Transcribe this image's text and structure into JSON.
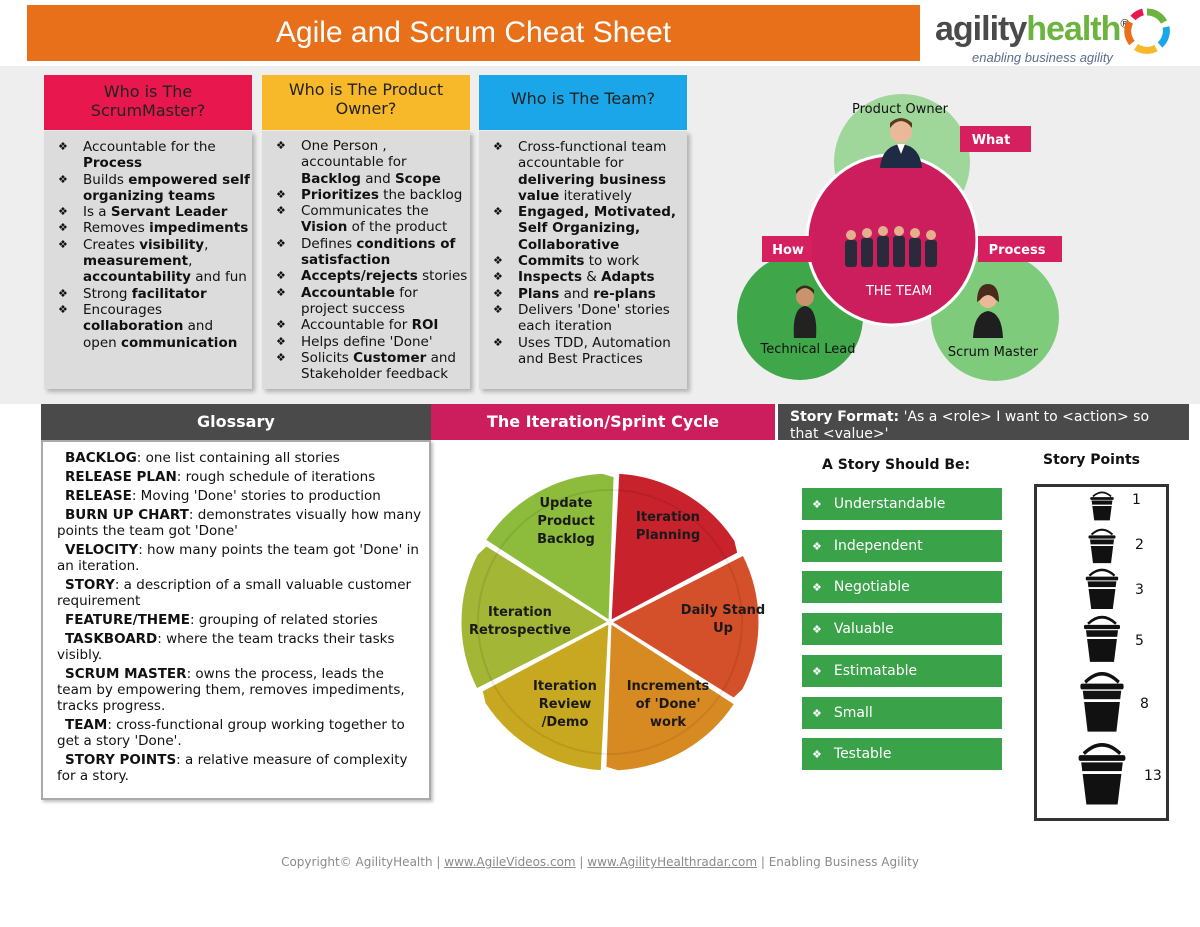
{
  "header": {
    "title": "Agile and Scrum Cheat Sheet"
  },
  "logo": {
    "name_part1": "agility",
    "name_part2": "health",
    "registered": "®",
    "tagline": "enabling business agility"
  },
  "roles": [
    {
      "title": "Who is The ScrumMaster?",
      "color": "#e8184f",
      "items": [
        [
          {
            "t": "Accountable for the "
          },
          {
            "t": "Process",
            "b": true
          }
        ],
        [
          {
            "t": "Builds "
          },
          {
            "t": "empowered self organizing teams",
            "b": true
          }
        ],
        [
          {
            "t": "Is a "
          },
          {
            "t": "Servant Leader",
            "b": true
          }
        ],
        [
          {
            "t": "Removes "
          },
          {
            "t": "impediments",
            "b": true
          }
        ],
        [
          {
            "t": "Creates "
          },
          {
            "t": "visibility",
            "b": true
          },
          {
            "t": ", "
          },
          {
            "t": "measurement",
            "b": true
          },
          {
            "t": ", "
          },
          {
            "t": "accountability",
            "b": true
          },
          {
            "t": " and fun"
          }
        ],
        [
          {
            "t": "Strong "
          },
          {
            "t": "facilitator",
            "b": true
          }
        ],
        [
          {
            "t": "Encourages "
          },
          {
            "t": "collaboration",
            "b": true
          },
          {
            "t": " and open "
          },
          {
            "t": "communication",
            "b": true
          }
        ]
      ]
    },
    {
      "title": "Who is The Product Owner?",
      "color": "#f7b82a",
      "items": [
        [
          {
            "t": "One Person , accountable for "
          },
          {
            "t": "Backlog",
            "b": true
          },
          {
            "t": " and "
          },
          {
            "t": "Scope",
            "b": true
          }
        ],
        [
          {
            "t": "Prioritizes",
            "b": true
          },
          {
            "t": " the backlog"
          }
        ],
        [
          {
            "t": "Communicates the "
          },
          {
            "t": "Vision",
            "b": true
          },
          {
            "t": " of the product"
          }
        ],
        [
          {
            "t": "Defines "
          },
          {
            "t": "conditions of satisfaction",
            "b": true
          }
        ],
        [
          {
            "t": "Accepts/rejects",
            "b": true
          },
          {
            "t": " stories"
          }
        ],
        [
          {
            "t": "Accountable",
            "b": true
          },
          {
            "t": " for project success"
          }
        ],
        [
          {
            "t": "Accountable for "
          },
          {
            "t": "ROI",
            "b": true
          }
        ],
        [
          {
            "t": "Helps define 'Done'"
          }
        ],
        [
          {
            "t": "Solicits "
          },
          {
            "t": "Customer",
            "b": true
          },
          {
            "t": " and Stakeholder feedback"
          }
        ]
      ]
    },
    {
      "title": "Who is The Team?",
      "color": "#1aa6e8",
      "items": [
        [
          {
            "t": "Cross-functional team accountable for "
          },
          {
            "t": "delivering business value",
            "b": true
          },
          {
            "t": " iteratively"
          }
        ],
        [
          {
            "t": "Engaged, Motivated, Self Organizing, Collaborative",
            "b": true
          }
        ],
        [
          {
            "t": "Commits",
            "b": true
          },
          {
            "t": " to work"
          }
        ],
        [
          {
            "t": "Inspects",
            "b": true
          },
          {
            "t": " & "
          },
          {
            "t": "Adapts",
            "b": true
          }
        ],
        [
          {
            "t": "Plans",
            "b": true
          },
          {
            "t": " and "
          },
          {
            "t": "re-plans",
            "b": true
          }
        ],
        [
          {
            "t": "Delivers 'Done' stories each iteration"
          }
        ],
        [
          {
            "t": "Uses TDD, Automation and Best  Practices"
          }
        ]
      ]
    }
  ],
  "team_diagram": {
    "product_owner": "Product Owner",
    "technical_lead": "Technical Lead",
    "scrum_master": "Scrum Master",
    "the_team": "THE TEAM",
    "what": "What",
    "how": "How",
    "process": "Process",
    "colors": {
      "outer": "#3fa649",
      "outer_light": "#9fd79b",
      "center": "#cc1d5c",
      "tag": "#d61f5e"
    }
  },
  "glossary": {
    "heading": "Glossary",
    "entries": [
      {
        "term": "BACKLOG",
        "def": ": one list containing all stories"
      },
      {
        "term": "RELEASE PLAN",
        "def": ": rough schedule of iterations"
      },
      {
        "term": "RELEASE",
        "def": ": Moving 'Done' stories to production"
      },
      {
        "term": "BURN UP CHART",
        "def": ": demonstrates visually how many points the team got 'Done'"
      },
      {
        "term": "VELOCITY",
        "def": ": how many points the team got 'Done' in an iteration."
      },
      {
        "term": "STORY",
        "def": ": a description of a small valuable customer requirement"
      },
      {
        "term": "FEATURE/THEME",
        "def": ": grouping of related stories"
      },
      {
        "term": "TASKBOARD",
        "def": ": where the team tracks their tasks visibly."
      },
      {
        "term": "SCRUM MASTER",
        "def": ": owns the process, leads the team by empowering them, removes impediments, tracks progress."
      },
      {
        "term": "TEAM",
        "def": ": cross-functional group working together to get a story 'Done'."
      },
      {
        "term": "STORY POINTS",
        "def": ": a relative measure of complexity for a story."
      }
    ]
  },
  "sprint_cycle": {
    "heading": "The Iteration/Sprint Cycle",
    "segments": [
      {
        "label": [
          "Iteration",
          "Planning"
        ],
        "color": "#c8222d"
      },
      {
        "label": [
          "Daily Stand",
          "Up"
        ],
        "color": "#d4502a"
      },
      {
        "label": [
          "Increments",
          "of 'Done'",
          "work"
        ],
        "color": "#d88a22"
      },
      {
        "label": [
          "Iteration",
          "Review",
          "/Demo"
        ],
        "color": "#c8a820"
      },
      {
        "label": [
          "Iteration",
          "Retrospective"
        ],
        "color": "#a3b636"
      },
      {
        "label": [
          "Update",
          "Product",
          "Backlog"
        ],
        "color": "#8dbb3c"
      }
    ]
  },
  "story": {
    "format_label": "Story Format:",
    "format_text": " 'As a <role> I want to <action> so that <value>'",
    "should_be_heading": "A Story Should Be:",
    "should_be": [
      {
        "first": "U",
        "rest": "nderstandable"
      },
      {
        "first": "I",
        "rest": "ndependent"
      },
      {
        "first": "N",
        "rest": "egotiable"
      },
      {
        "first": "V",
        "rest": "aluable"
      },
      {
        "first": "E",
        "rest": "stimatable"
      },
      {
        "first": "S",
        "rest": "mall"
      },
      {
        "first": "T",
        "rest": "estable"
      }
    ],
    "points_heading": "Story Points",
    "points": [
      "1",
      "2",
      "3",
      "5",
      "8",
      "13"
    ]
  },
  "footer": {
    "copyright": "Copyright© AgilityHealth",
    "sep": " | ",
    "link1": "www.AgileVideos.com",
    "link2": "www.AgilityHealthradar.com",
    "tagline": "Enabling Business Agility"
  }
}
